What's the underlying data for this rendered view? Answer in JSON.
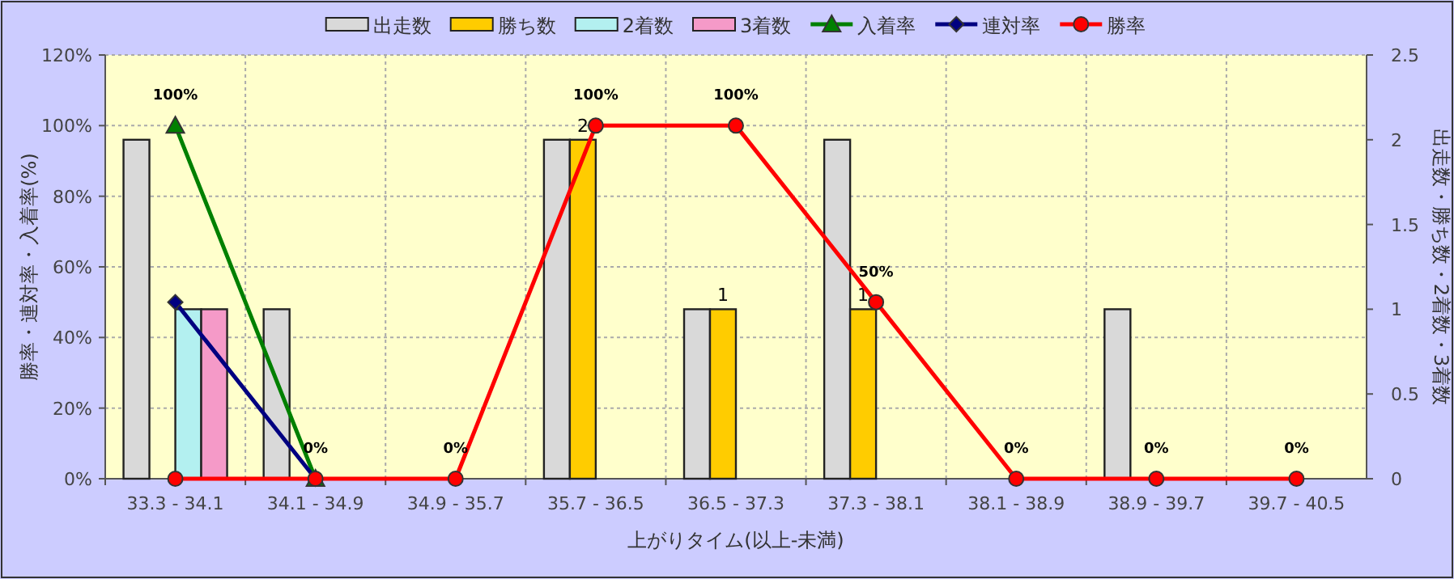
{
  "chart_data": {
    "type": "bar",
    "xlabel": "上がりタイム(以上-未満)",
    "ylabel": "勝率・連対率・入着率(%)",
    "y2label": "出走数・勝ち数・2着数・3着数",
    "categories": [
      "33.3 - 34.1",
      "34.1 - 34.9",
      "34.9 - 35.7",
      "35.7 - 36.5",
      "36.5 - 37.3",
      "37.3 - 38.1",
      "38.1 - 38.9",
      "38.9 - 39.7",
      "39.7 - 40.5"
    ],
    "series": [
      {
        "name": "出走数",
        "axis": "y2",
        "color": "#d9d9d9",
        "values": [
          2,
          1,
          0,
          2,
          1,
          2,
          0,
          1,
          0
        ]
      },
      {
        "name": "勝ち数",
        "axis": "y2",
        "color": "#ffcc00",
        "values": [
          0,
          0,
          0,
          2,
          1,
          1,
          0,
          0,
          0
        ],
        "value_labels": [
          null,
          null,
          null,
          "2",
          "1",
          "1",
          null,
          null,
          null
        ]
      },
      {
        "name": "2着数",
        "axis": "y2",
        "color": "#b3f0f0",
        "values": [
          1,
          0,
          0,
          0,
          0,
          0,
          0,
          0,
          0
        ]
      },
      {
        "name": "3着数",
        "axis": "y2",
        "color": "#f59ac8",
        "values": [
          1,
          0,
          0,
          0,
          0,
          0,
          0,
          0,
          0
        ]
      },
      {
        "name": "入着率",
        "type": "line",
        "color": "#008000",
        "marker": "triangle",
        "values": [
          100,
          0,
          null,
          null,
          null,
          null,
          null,
          null,
          null
        ],
        "value_labels": [
          "100%",
          "0%",
          null,
          null,
          null,
          null,
          null,
          null,
          null
        ]
      },
      {
        "name": "連対率",
        "type": "line",
        "color": "#000080",
        "marker": "diamond",
        "values": [
          50,
          0,
          null,
          null,
          null,
          null,
          null,
          null,
          null
        ]
      },
      {
        "name": "勝率",
        "type": "line",
        "color": "#ff0000",
        "marker": "circle",
        "values": [
          0,
          0,
          0,
          100,
          100,
          50,
          0,
          0,
          0
        ],
        "value_labels": [
          null,
          null,
          "0%",
          "100%",
          "100%",
          "50%",
          "0%",
          "0%",
          "0%"
        ]
      }
    ],
    "ylim": [
      0,
      120
    ],
    "yticks": [
      {
        "value": 0,
        "label": "0%"
      },
      {
        "value": 20,
        "label": "20%"
      },
      {
        "value": 40,
        "label": "40%"
      },
      {
        "value": 60,
        "label": "60%"
      },
      {
        "value": 80,
        "label": "80%"
      },
      {
        "value": 100,
        "label": "100%"
      },
      {
        "value": 120,
        "label": "120%"
      }
    ],
    "y2lim": [
      0,
      2.5
    ],
    "y2ticks": [
      0,
      0.5,
      1,
      1.5,
      2,
      2.5
    ],
    "grid": true,
    "legend": "top"
  }
}
